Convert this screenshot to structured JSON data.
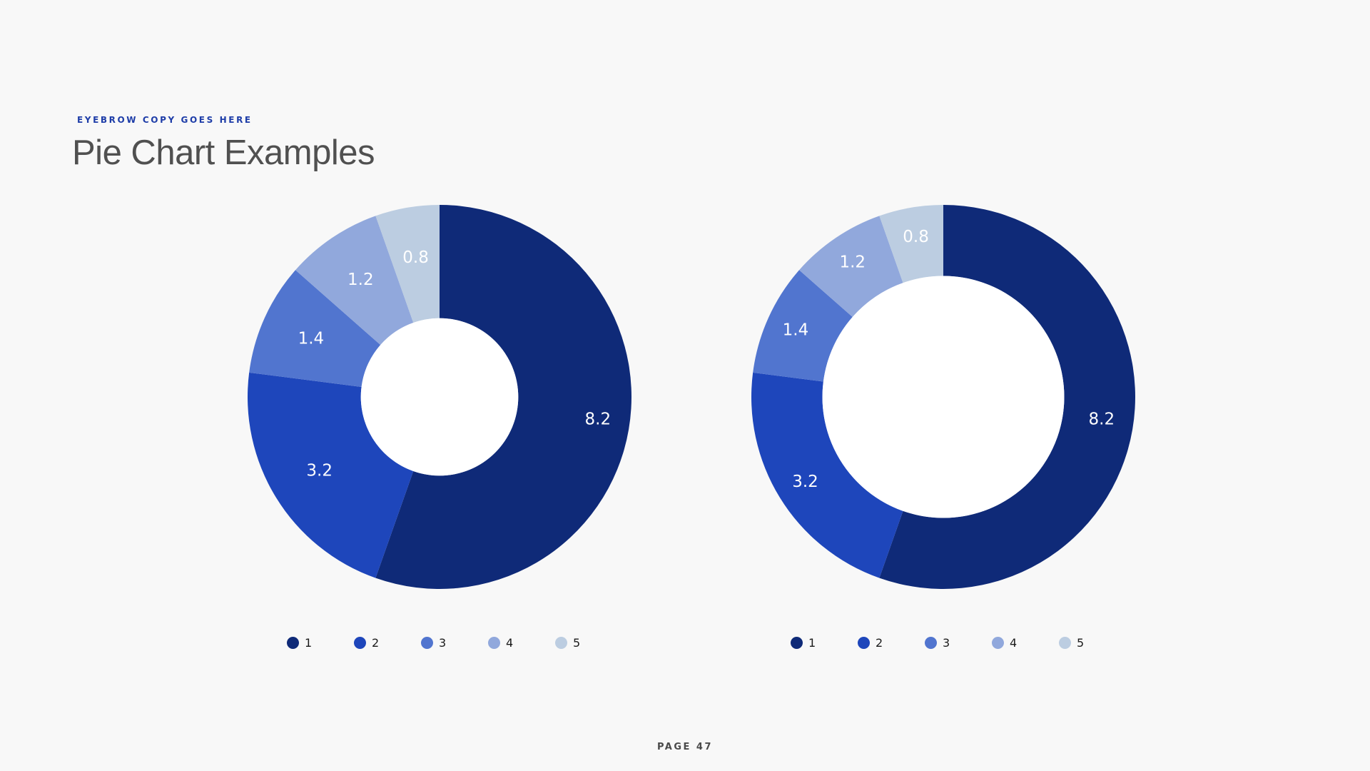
{
  "header": {
    "eyebrow": "EYEBROW COPY GOES HERE",
    "title": "Pie Chart Examples"
  },
  "footer": {
    "page_label": "PAGE 47"
  },
  "colors": {
    "series": [
      "#0f2a78",
      "#1e46bb",
      "#5175cf",
      "#91a8dc",
      "#bccde1"
    ],
    "center": "#ffffff",
    "background": "#f8f8f8",
    "eyebrow": "#1e3da8"
  },
  "chart_data": [
    {
      "type": "pie",
      "variant": "donut",
      "hole_ratio": 0.41,
      "categories": [
        "1",
        "2",
        "3",
        "4",
        "5"
      ],
      "values": [
        8.2,
        3.2,
        1.4,
        1.2,
        0.8
      ],
      "data_labels": [
        "8.2",
        "3.2",
        "1.4",
        "1.2",
        "0.8"
      ],
      "legend": [
        "1",
        "2",
        "3",
        "4",
        "5"
      ],
      "legend_position": "bottom",
      "start_angle": "12 o'clock",
      "direction": "clockwise"
    },
    {
      "type": "pie",
      "variant": "donut",
      "hole_ratio": 0.63,
      "categories": [
        "1",
        "2",
        "3",
        "4",
        "5"
      ],
      "values": [
        8.2,
        3.2,
        1.4,
        1.2,
        0.8
      ],
      "data_labels": [
        "8.2",
        "3.2",
        "1.4",
        "1.2",
        "0.8"
      ],
      "legend": [
        "1",
        "2",
        "3",
        "4",
        "5"
      ],
      "legend_position": "bottom",
      "start_angle": "12 o'clock",
      "direction": "clockwise"
    }
  ]
}
